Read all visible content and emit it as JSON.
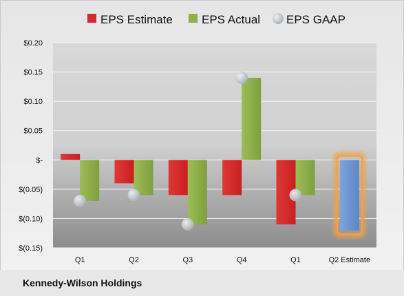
{
  "chart_data": {
    "type": "bar",
    "categories": [
      "Q1",
      "Q2",
      "Q3",
      "Q4",
      "Q1",
      "Q2 Estimate"
    ],
    "series": [
      {
        "name": "EPS Estimate",
        "values": [
          0.01,
          -0.04,
          -0.06,
          -0.06,
          -0.11,
          null
        ]
      },
      {
        "name": "EPS Actual",
        "values": [
          -0.07,
          -0.06,
          -0.11,
          0.14,
          -0.06,
          -0.12
        ]
      },
      {
        "name": "EPS GAAP",
        "values": [
          -0.07,
          -0.06,
          -0.11,
          0.14,
          -0.06,
          null
        ]
      }
    ],
    "ylim": [
      -0.15,
      0.2
    ],
    "yticks": [
      0.2,
      0.15,
      0.1,
      0.05,
      0,
      -0.05,
      -0.1,
      -0.15
    ],
    "ytick_labels": [
      "$0.20",
      "$0.15",
      "$0.10",
      "$0.05",
      "$-",
      "$(0.05)",
      "$(0.10)",
      "$(0.15)"
    ],
    "highlight_category": "Q2 Estimate",
    "grid": true,
    "legend_position": "top"
  },
  "footer": {
    "company": "Kennedy-Wilson Holdings"
  },
  "colors": {
    "estimate": "#d42b2b",
    "actual": "#8fb04a",
    "gaap": "#c4c7cc",
    "forecast_bar": "#6f97d2",
    "forecast_glow": "#f2a14a",
    "background_top": "#dcdcdc",
    "background_bottom": "#8f8f8f"
  }
}
